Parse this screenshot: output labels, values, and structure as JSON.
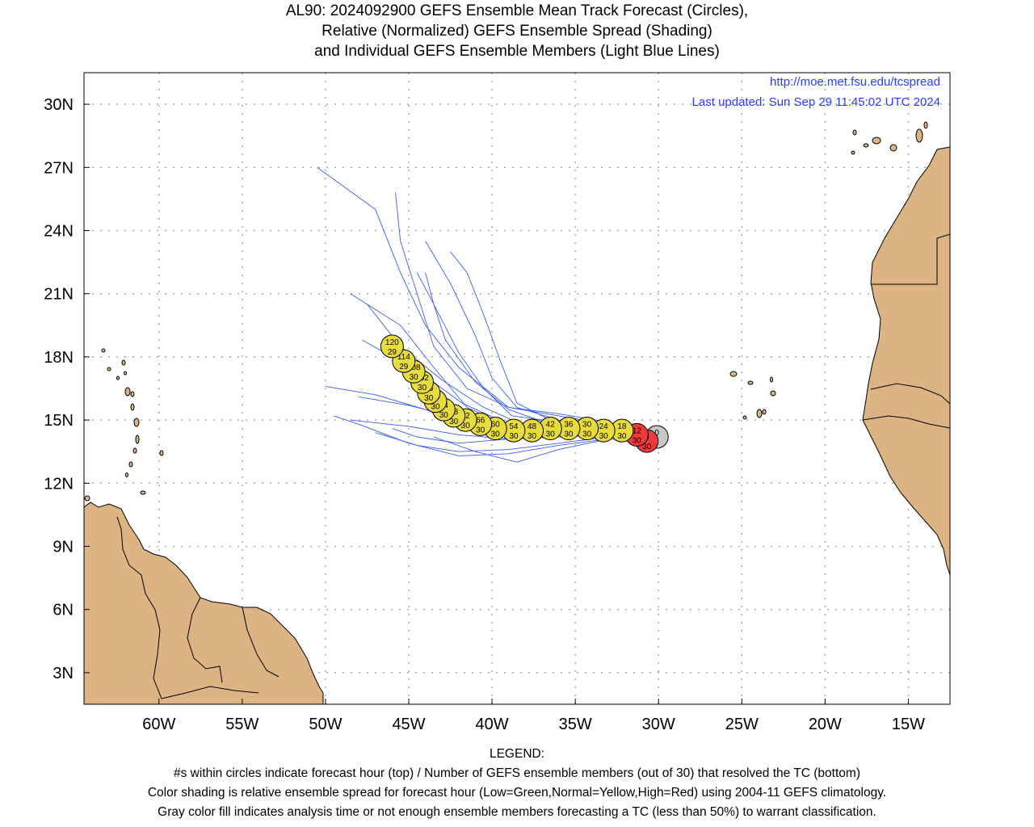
{
  "title": {
    "line1": "AL90: 2024092900 GEFS Ensemble Mean Track Forecast (Circles),",
    "line2": "Relative (Normalized) GEFS Ensemble Spread (Shading)",
    "line3": "and Individual GEFS Ensemble Members (Light Blue Lines)"
  },
  "source": {
    "url": "http://moe.met.fsu.edu/tcspread",
    "updated": "Last updated: Sun Sep 29 11:45:02 UTC 2024"
  },
  "axes": {
    "lon_range": [
      -64.5,
      -12.5
    ],
    "lat_range": [
      1.5,
      31.5
    ],
    "lon_ticks": [
      -60,
      -55,
      -50,
      -45,
      -40,
      -35,
      -30,
      -25,
      -20,
      -15
    ],
    "lon_labels": [
      "60W",
      "55W",
      "50W",
      "45W",
      "40W",
      "35W",
      "30W",
      "25W",
      "20W",
      "15W"
    ],
    "lat_ticks": [
      3,
      6,
      9,
      12,
      15,
      18,
      21,
      24,
      27,
      30
    ],
    "lat_labels": [
      "3N",
      "6N",
      "9N",
      "12N",
      "15N",
      "18N",
      "21N",
      "24N",
      "27N",
      "30N"
    ],
    "grid": true
  },
  "colors": {
    "land": "#dcb483",
    "coast": "#000000",
    "member_line": "#3a5cf0",
    "spread_normal": "#e8dc3c",
    "spread_high": "#ee3a3a",
    "analysis": "#c8c8c8",
    "url": "#2a3cff"
  },
  "chart_data": {
    "type": "scatter",
    "track": [
      {
        "hour": "0",
        "members": "",
        "lon": -30.1,
        "lat": 14.2,
        "spread": "analysis"
      },
      {
        "hour": "6",
        "members": "30",
        "lon": -30.7,
        "lat": 14.0,
        "spread": "high"
      },
      {
        "hour": "12",
        "members": "30",
        "lon": -31.3,
        "lat": 14.3,
        "spread": "high"
      },
      {
        "hour": "18",
        "members": "30",
        "lon": -32.2,
        "lat": 14.5,
        "spread": "normal"
      },
      {
        "hour": "24",
        "members": "30",
        "lon": -33.3,
        "lat": 14.5,
        "spread": "normal"
      },
      {
        "hour": "30",
        "members": "30",
        "lon": -34.3,
        "lat": 14.6,
        "spread": "normal"
      },
      {
        "hour": "36",
        "members": "30",
        "lon": -35.4,
        "lat": 14.6,
        "spread": "normal"
      },
      {
        "hour": "42",
        "members": "30",
        "lon": -36.5,
        "lat": 14.6,
        "spread": "normal"
      },
      {
        "hour": "48",
        "members": "30",
        "lon": -37.6,
        "lat": 14.5,
        "spread": "normal"
      },
      {
        "hour": "54",
        "members": "30",
        "lon": -38.7,
        "lat": 14.5,
        "spread": "normal"
      },
      {
        "hour": "60",
        "members": "30",
        "lon": -39.8,
        "lat": 14.6,
        "spread": "normal"
      },
      {
        "hour": "66",
        "members": "30",
        "lon": -40.7,
        "lat": 14.8,
        "spread": "normal"
      },
      {
        "hour": "72",
        "members": "30",
        "lon": -41.6,
        "lat": 15.0,
        "spread": "normal"
      },
      {
        "hour": "78",
        "members": "30",
        "lon": -42.3,
        "lat": 15.2,
        "spread": "normal"
      },
      {
        "hour": "84",
        "members": "30",
        "lon": -42.9,
        "lat": 15.5,
        "spread": "normal"
      },
      {
        "hour": "90",
        "members": "30",
        "lon": -43.4,
        "lat": 15.9,
        "spread": "normal"
      },
      {
        "hour": "96",
        "members": "30",
        "lon": -43.8,
        "lat": 16.3,
        "spread": "normal"
      },
      {
        "hour": "102",
        "members": "30",
        "lon": -44.2,
        "lat": 16.8,
        "spread": "normal"
      },
      {
        "hour": "108",
        "members": "30",
        "lon": -44.7,
        "lat": 17.3,
        "spread": "normal"
      },
      {
        "hour": "114",
        "members": "29",
        "lon": -45.3,
        "lat": 17.8,
        "spread": "normal"
      },
      {
        "hour": "120",
        "members": "29",
        "lon": -46.0,
        "lat": 18.5,
        "spread": "normal"
      }
    ],
    "members": [
      [
        [
          -29.8,
          14.0
        ],
        [
          -33,
          14.9
        ],
        [
          -36,
          15.3
        ],
        [
          -39,
          15.6
        ],
        [
          -42,
          17.5
        ],
        [
          -44,
          19.5
        ],
        [
          -45.5,
          22
        ],
        [
          -47,
          25
        ],
        [
          -50.5,
          27
        ]
      ],
      [
        [
          -29.8,
          14.0
        ],
        [
          -33,
          14.8
        ],
        [
          -36,
          15.2
        ],
        [
          -39,
          15.6
        ],
        [
          -41.5,
          16.5
        ],
        [
          -43.5,
          18.5
        ],
        [
          -44.5,
          21
        ],
        [
          -45.5,
          23.5
        ],
        [
          -45.8,
          25.8
        ]
      ],
      [
        [
          -29.8,
          14.0
        ],
        [
          -33,
          14.7
        ],
        [
          -36,
          15.0
        ],
        [
          -38.5,
          15.6
        ],
        [
          -40,
          17
        ],
        [
          -41,
          19
        ],
        [
          -42.5,
          21.5
        ],
        [
          -44,
          23.5
        ]
      ],
      [
        [
          -29.8,
          14.0
        ],
        [
          -33,
          14.6
        ],
        [
          -36,
          14.9
        ],
        [
          -38.8,
          15.2
        ],
        [
          -40.5,
          16.5
        ],
        [
          -42,
          18.2
        ],
        [
          -43.5,
          20.5
        ],
        [
          -44.5,
          22
        ]
      ],
      [
        [
          -29.8,
          14.0
        ],
        [
          -33,
          14.5
        ],
        [
          -36,
          14.6
        ],
        [
          -38.5,
          14.9
        ],
        [
          -40.5,
          15.6
        ],
        [
          -43,
          16.9
        ],
        [
          -45.5,
          18.5
        ],
        [
          -47.5,
          20.5
        ]
      ],
      [
        [
          -29.8,
          14.0
        ],
        [
          -33,
          14.5
        ],
        [
          -36,
          14.5
        ],
        [
          -39,
          14.5
        ],
        [
          -41.5,
          14.9
        ],
        [
          -44,
          15.5
        ],
        [
          -47,
          16.2
        ],
        [
          -50,
          16.6
        ]
      ],
      [
        [
          -29.8,
          14.0
        ],
        [
          -33,
          14.3
        ],
        [
          -36,
          14.2
        ],
        [
          -39,
          14.1
        ],
        [
          -42,
          14.3
        ],
        [
          -45,
          14.7
        ],
        [
          -48.5,
          15.0
        ]
      ],
      [
        [
          -29.8,
          14.0
        ],
        [
          -33,
          14.2
        ],
        [
          -36,
          13.9
        ],
        [
          -39,
          13.6
        ],
        [
          -42,
          13.5
        ],
        [
          -44.5,
          13.8
        ],
        [
          -47,
          14.4
        ]
      ],
      [
        [
          -29.8,
          14.0
        ],
        [
          -33,
          14.1
        ],
        [
          -36,
          13.6
        ],
        [
          -38.5,
          13.0
        ],
        [
          -41,
          13.5
        ],
        [
          -43.5,
          14.2
        ]
      ],
      [
        [
          -29.8,
          14.0
        ],
        [
          -33,
          14.1
        ],
        [
          -36,
          13.8
        ],
        [
          -39,
          13.4
        ],
        [
          -42,
          13.3
        ],
        [
          -45,
          13.9
        ],
        [
          -48,
          14.8
        ],
        [
          -49.5,
          15.2
        ]
      ],
      [
        [
          -29.8,
          14.0
        ],
        [
          -33,
          14.3
        ],
        [
          -36,
          14.5
        ],
        [
          -39,
          14.7
        ],
        [
          -41.5,
          15.6
        ],
        [
          -43.5,
          17.5
        ],
        [
          -45.5,
          19.5
        ],
        [
          -48.5,
          21
        ]
      ],
      [
        [
          -29.8,
          14.0
        ],
        [
          -33,
          14.6
        ],
        [
          -36.5,
          14.8
        ],
        [
          -39,
          15.5
        ],
        [
          -41,
          16.8
        ],
        [
          -42.8,
          18.8
        ],
        [
          -43.5,
          20.5
        ],
        [
          -44,
          22
        ]
      ],
      [
        [
          -29.8,
          14.0
        ],
        [
          -33,
          14.6
        ],
        [
          -36,
          14.8
        ],
        [
          -38.5,
          15.8
        ],
        [
          -39.5,
          17.8
        ],
        [
          -40.5,
          20
        ],
        [
          -41.5,
          22
        ],
        [
          -42.5,
          23
        ]
      ],
      [
        [
          -29.8,
          14.0
        ],
        [
          -33,
          14.4
        ],
        [
          -36,
          14.4
        ],
        [
          -39,
          14.8
        ],
        [
          -41.8,
          15.8
        ],
        [
          -44.2,
          17.2
        ],
        [
          -47.8,
          18.8
        ]
      ],
      [
        [
          -29.8,
          14.0
        ],
        [
          -33,
          14.4
        ],
        [
          -36,
          14.3
        ],
        [
          -39,
          14.6
        ],
        [
          -42,
          15.1
        ],
        [
          -45,
          15.7
        ],
        [
          -48,
          16.1
        ]
      ],
      [
        [
          -29.8,
          14.0
        ],
        [
          -33,
          14.3
        ],
        [
          -36,
          14.2
        ],
        [
          -39,
          14.1
        ],
        [
          -42,
          13.9
        ],
        [
          -44.5,
          14.2
        ],
        [
          -46,
          14.6
        ]
      ]
    ]
  },
  "legend": {
    "heading": "LEGEND:",
    "line1": "#s within circles indicate forecast hour (top) / Number of GEFS ensemble members (out of 30) that resolved the TC (bottom)",
    "line2": "Color shading is relative ensemble spread for forecast hour (Low=Green,Normal=Yellow,High=Red) using 2004-11 GEFS climatology.",
    "line3": "Gray color fill indicates analysis time or not enough ensemble members forecasting a TC (less than 50%) to warrant classification."
  }
}
